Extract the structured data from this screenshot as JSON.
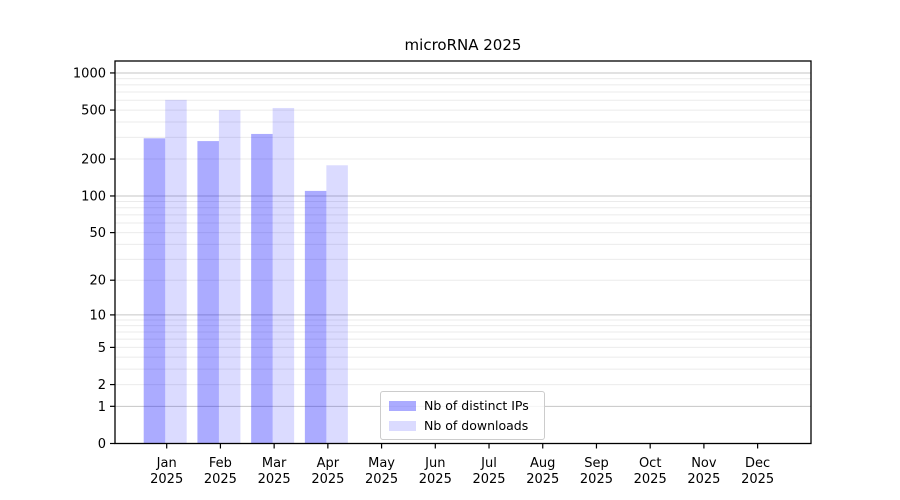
{
  "title": "microRNA 2025",
  "chart_data": {
    "type": "bar",
    "title": "microRNA 2025",
    "scale": "log10(value+1)",
    "categories": [
      "Jan 2025",
      "Feb 2025",
      "Mar 2025",
      "Apr 2025",
      "May 2025",
      "Jun 2025",
      "Jul 2025",
      "Aug 2025",
      "Sep 2025",
      "Oct 2025",
      "Nov 2025",
      "Dec 2025"
    ],
    "x_tick_months": [
      "Jan",
      "Feb",
      "Mar",
      "Apr",
      "May",
      "Jun",
      "Jul",
      "Aug",
      "Sep",
      "Oct",
      "Nov",
      "Dec"
    ],
    "x_tick_year": "2025",
    "series": [
      {
        "name": "Nb of distinct IPs",
        "color": "rgba(0,0,255,0.33)",
        "values": [
          295,
          280,
          320,
          110,
          0,
          0,
          0,
          0,
          0,
          0,
          0,
          0
        ]
      },
      {
        "name": "Nb of downloads",
        "color": "rgba(0,0,255,0.14)",
        "values": [
          605,
          500,
          520,
          178,
          0,
          0,
          0,
          0,
          0,
          0,
          0,
          0
        ]
      }
    ],
    "y_ticks": [
      0,
      1,
      2,
      5,
      10,
      20,
      50,
      100,
      200,
      500,
      1000
    ],
    "ylim": [
      0,
      1250
    ],
    "grid": {
      "major_ticks": [
        1,
        10,
        100,
        1000
      ],
      "major_color": "#c6c6c6",
      "minor_color": "#ebebeb"
    },
    "legend_position": "lower center",
    "axis_color": "#000000",
    "tick_label_color": "#000000"
  }
}
